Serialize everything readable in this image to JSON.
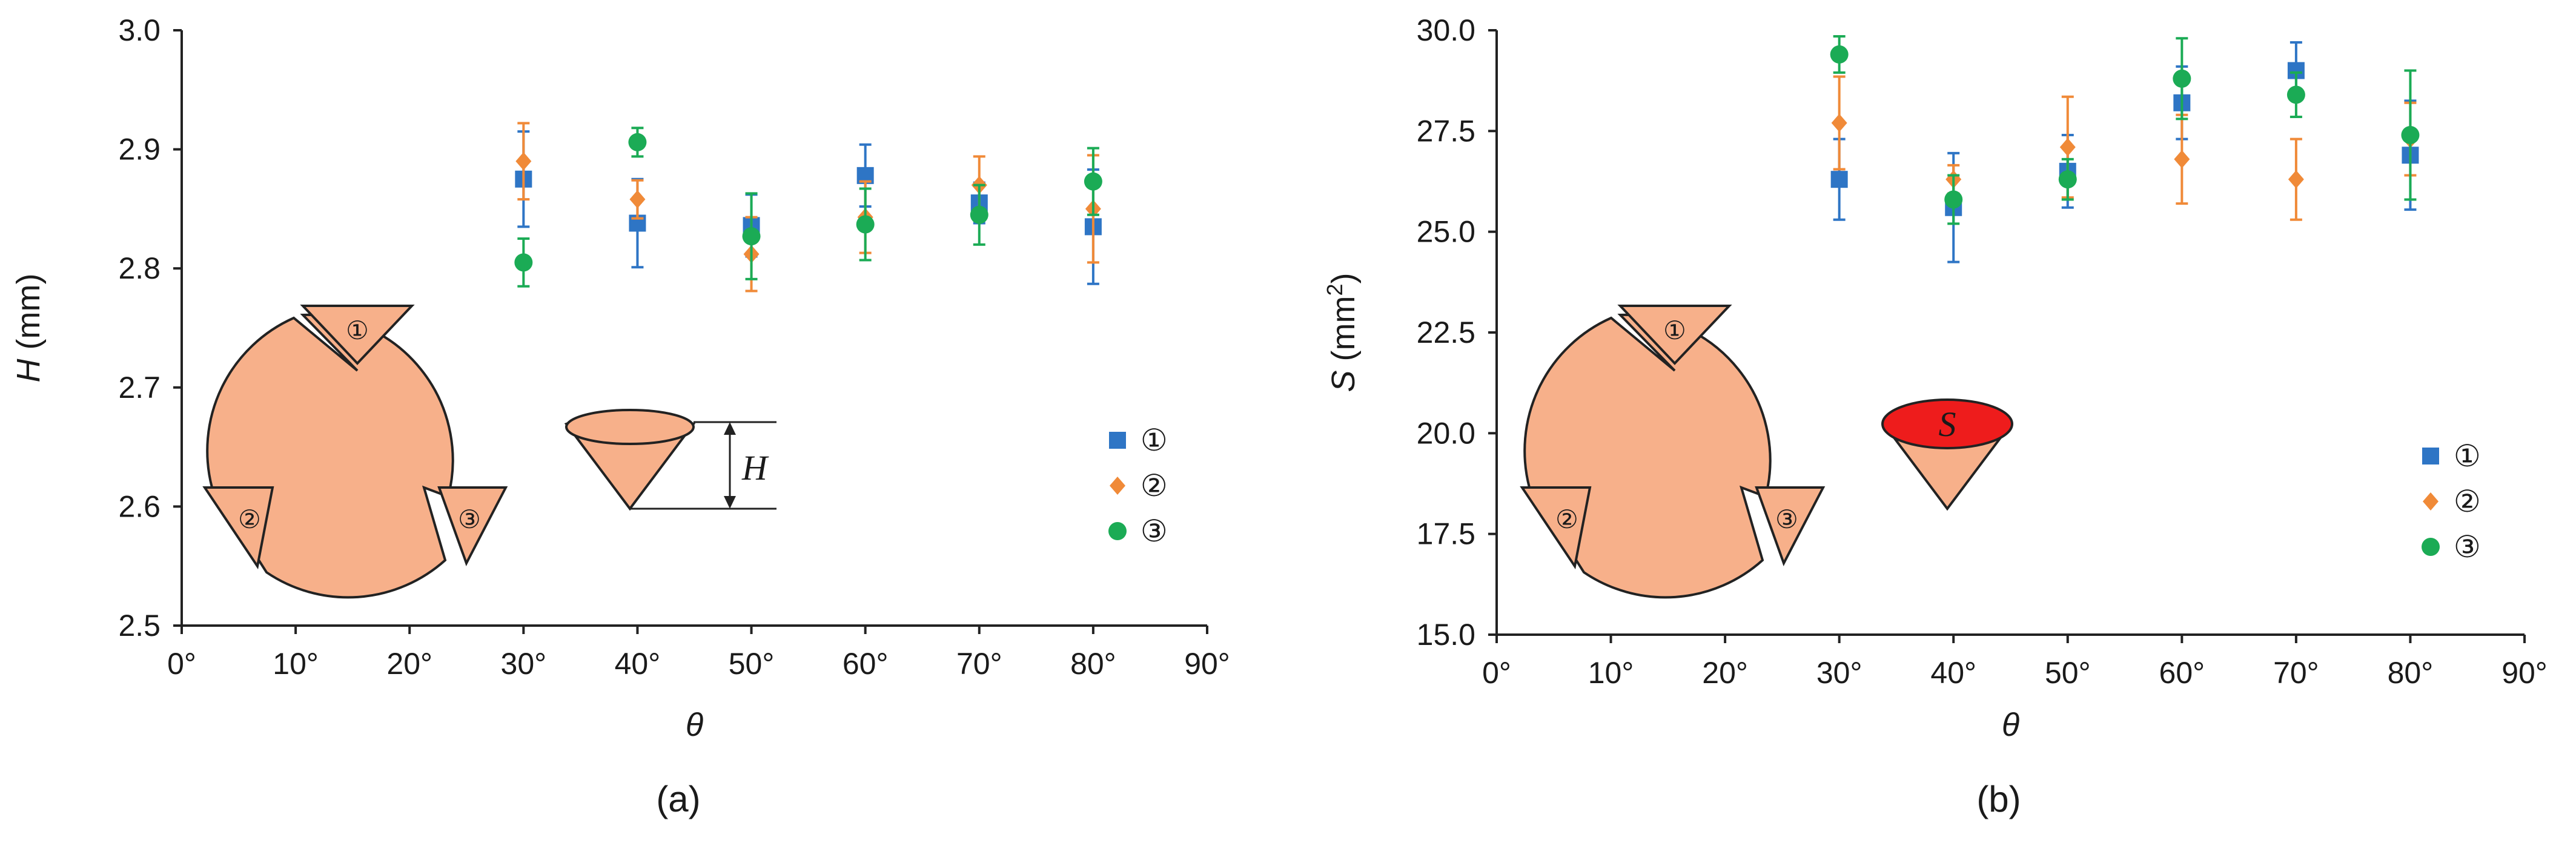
{
  "figure": {
    "panels": [
      "(a)",
      "(b)"
    ]
  },
  "chart_data": [
    {
      "type": "scatter",
      "panel_label": "(a)",
      "xlabel": "θ",
      "ylabel_symbol": "H",
      "ylabel_unit": " (mm)",
      "xlim": [
        0,
        90
      ],
      "ylim": [
        2.5,
        3.0
      ],
      "x_ticks": [
        0,
        10,
        20,
        30,
        40,
        50,
        60,
        70,
        80,
        90
      ],
      "x_tick_labels": [
        "0°",
        "10°",
        "20°",
        "30°",
        "40°",
        "50°",
        "60°",
        "70°",
        "80°",
        "90°"
      ],
      "y_ticks": [
        2.5,
        2.6,
        2.7,
        2.8,
        2.9,
        3.0
      ],
      "y_tick_labels": [
        "2.5",
        "2.6",
        "2.7",
        "2.8",
        "2.9",
        "3.0"
      ],
      "grid": false,
      "legend_position": "right",
      "series": [
        {
          "name": "①",
          "marker": "square",
          "color": "#2e75c5",
          "x": [
            30,
            40,
            50,
            60,
            70,
            80
          ],
          "y": [
            2.875,
            2.838,
            2.836,
            2.878,
            2.855,
            2.835
          ],
          "err": [
            0.04,
            0.037,
            0.026,
            0.026,
            0.017,
            0.048
          ]
        },
        {
          "name": "②",
          "marker": "diamond",
          "color": "#f08a38",
          "x": [
            30,
            40,
            50,
            60,
            70,
            80
          ],
          "y": [
            2.89,
            2.858,
            2.812,
            2.843,
            2.87,
            2.85
          ],
          "err": [
            0.032,
            0.016,
            0.031,
            0.03,
            0.024,
            0.045
          ]
        },
        {
          "name": "③",
          "marker": "circle",
          "color": "#1bab55",
          "x": [
            30,
            40,
            50,
            60,
            70,
            80
          ],
          "y": [
            2.805,
            2.906,
            2.827,
            2.837,
            2.845,
            2.873
          ],
          "err": [
            0.02,
            0.012,
            0.036,
            0.03,
            0.025,
            0.028
          ]
        }
      ],
      "inset": {
        "cone_label": "H",
        "region_labels": [
          "①",
          "②",
          "③"
        ]
      }
    },
    {
      "type": "scatter",
      "panel_label": "(b)",
      "xlabel": "θ",
      "ylabel_symbol": "S",
      "ylabel_unit": " (mm",
      "ylabel_sup": "2",
      "ylabel_close": ")",
      "xlim": [
        0,
        90
      ],
      "ylim": [
        15.0,
        30.0
      ],
      "x_ticks": [
        0,
        10,
        20,
        30,
        40,
        50,
        60,
        70,
        80,
        90
      ],
      "x_tick_labels": [
        "0°",
        "10°",
        "20°",
        "30°",
        "40°",
        "50°",
        "60°",
        "70°",
        "80°",
        "90°"
      ],
      "y_ticks": [
        15.0,
        17.5,
        20.0,
        22.5,
        25.0,
        27.5,
        30.0
      ],
      "y_tick_labels": [
        "15.0",
        "17.5",
        "20.0",
        "22.5",
        "25.0",
        "27.5",
        "30.0"
      ],
      "grid": false,
      "legend_position": "right",
      "series": [
        {
          "name": "①",
          "marker": "square",
          "color": "#2e75c5",
          "x": [
            30,
            40,
            50,
            60,
            70,
            80
          ],
          "y": [
            26.3,
            25.6,
            26.5,
            28.2,
            29.0,
            26.9
          ],
          "err": [
            1.0,
            1.35,
            0.9,
            0.9,
            0.7,
            1.35
          ]
        },
        {
          "name": "②",
          "marker": "diamond",
          "color": "#f08a38",
          "x": [
            30,
            40,
            50,
            60,
            70,
            80
          ],
          "y": [
            27.7,
            26.3,
            27.1,
            26.8,
            26.3,
            27.3
          ],
          "err": [
            1.15,
            0.35,
            1.25,
            1.1,
            1.0,
            0.9
          ]
        },
        {
          "name": "③",
          "marker": "circle",
          "color": "#1bab55",
          "x": [
            30,
            40,
            50,
            60,
            70,
            80
          ],
          "y": [
            29.4,
            25.8,
            26.3,
            28.8,
            28.4,
            27.4
          ],
          "err": [
            0.45,
            0.6,
            0.5,
            1.0,
            0.55,
            1.6
          ]
        }
      ],
      "inset": {
        "cone_label": "S",
        "region_labels": [
          "①",
          "②",
          "③"
        ]
      }
    }
  ]
}
